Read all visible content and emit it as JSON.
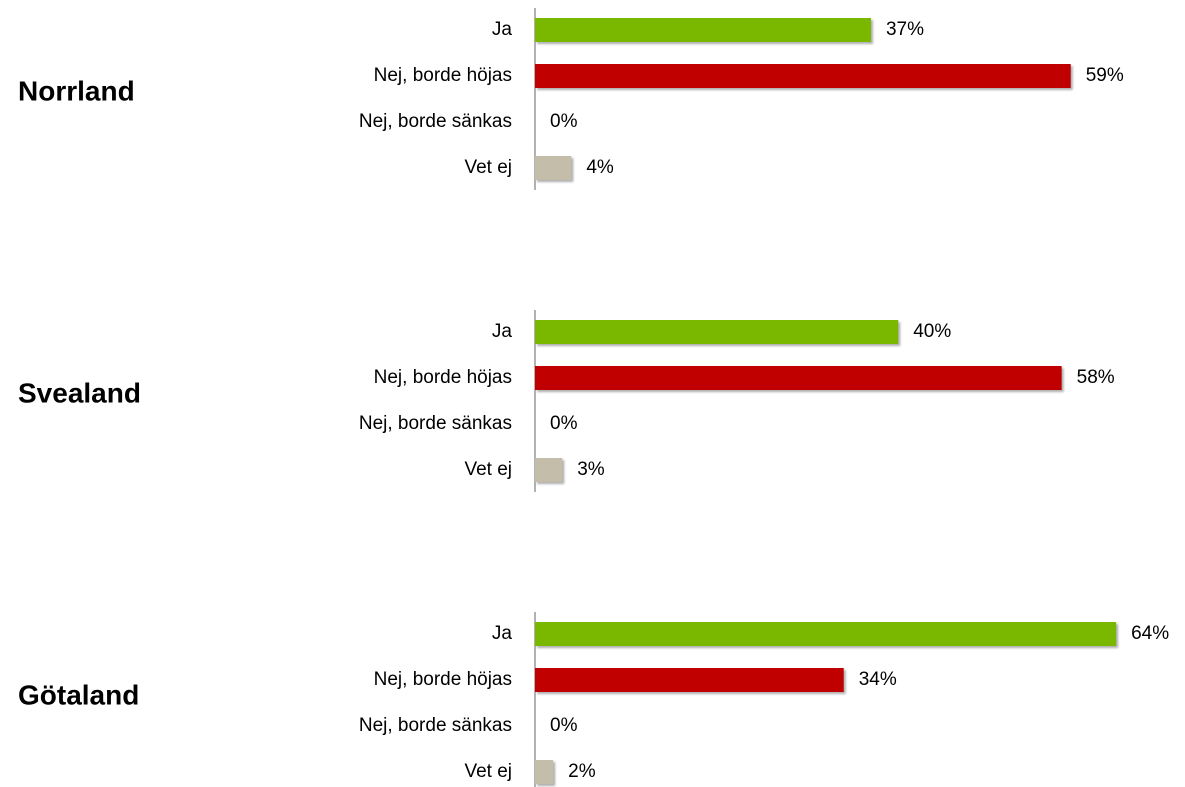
{
  "chart_data": [
    {
      "type": "bar",
      "orientation": "horizontal",
      "title": "Norrland",
      "categories": [
        "Ja",
        "Nej, borde höjas",
        "Nej, borde sänkas",
        "Vet ej"
      ],
      "values": [
        37,
        59,
        0,
        4
      ],
      "value_labels": [
        "37%",
        "59%",
        "0%",
        "4%"
      ],
      "colors": [
        "#7ab800",
        "#c00000",
        "#c4bdaa",
        "#c4bdaa"
      ]
    },
    {
      "type": "bar",
      "orientation": "horizontal",
      "title": "Svealand",
      "categories": [
        "Ja",
        "Nej, borde höjas",
        "Nej, borde sänkas",
        "Vet ej"
      ],
      "values": [
        40,
        58,
        0,
        3
      ],
      "value_labels": [
        "40%",
        "58%",
        "0%",
        "3%"
      ],
      "colors": [
        "#7ab800",
        "#c00000",
        "#c4bdaa",
        "#c4bdaa"
      ]
    },
    {
      "type": "bar",
      "orientation": "horizontal",
      "title": "Götaland",
      "categories": [
        "Ja",
        "Nej, borde höjas",
        "Nej, borde sänkas",
        "Vet ej"
      ],
      "values": [
        64,
        34,
        0,
        2
      ],
      "value_labels": [
        "64%",
        "34%",
        "0%",
        "2%"
      ],
      "colors": [
        "#7ab800",
        "#c00000",
        "#c4bdaa",
        "#c4bdaa"
      ]
    }
  ]
}
